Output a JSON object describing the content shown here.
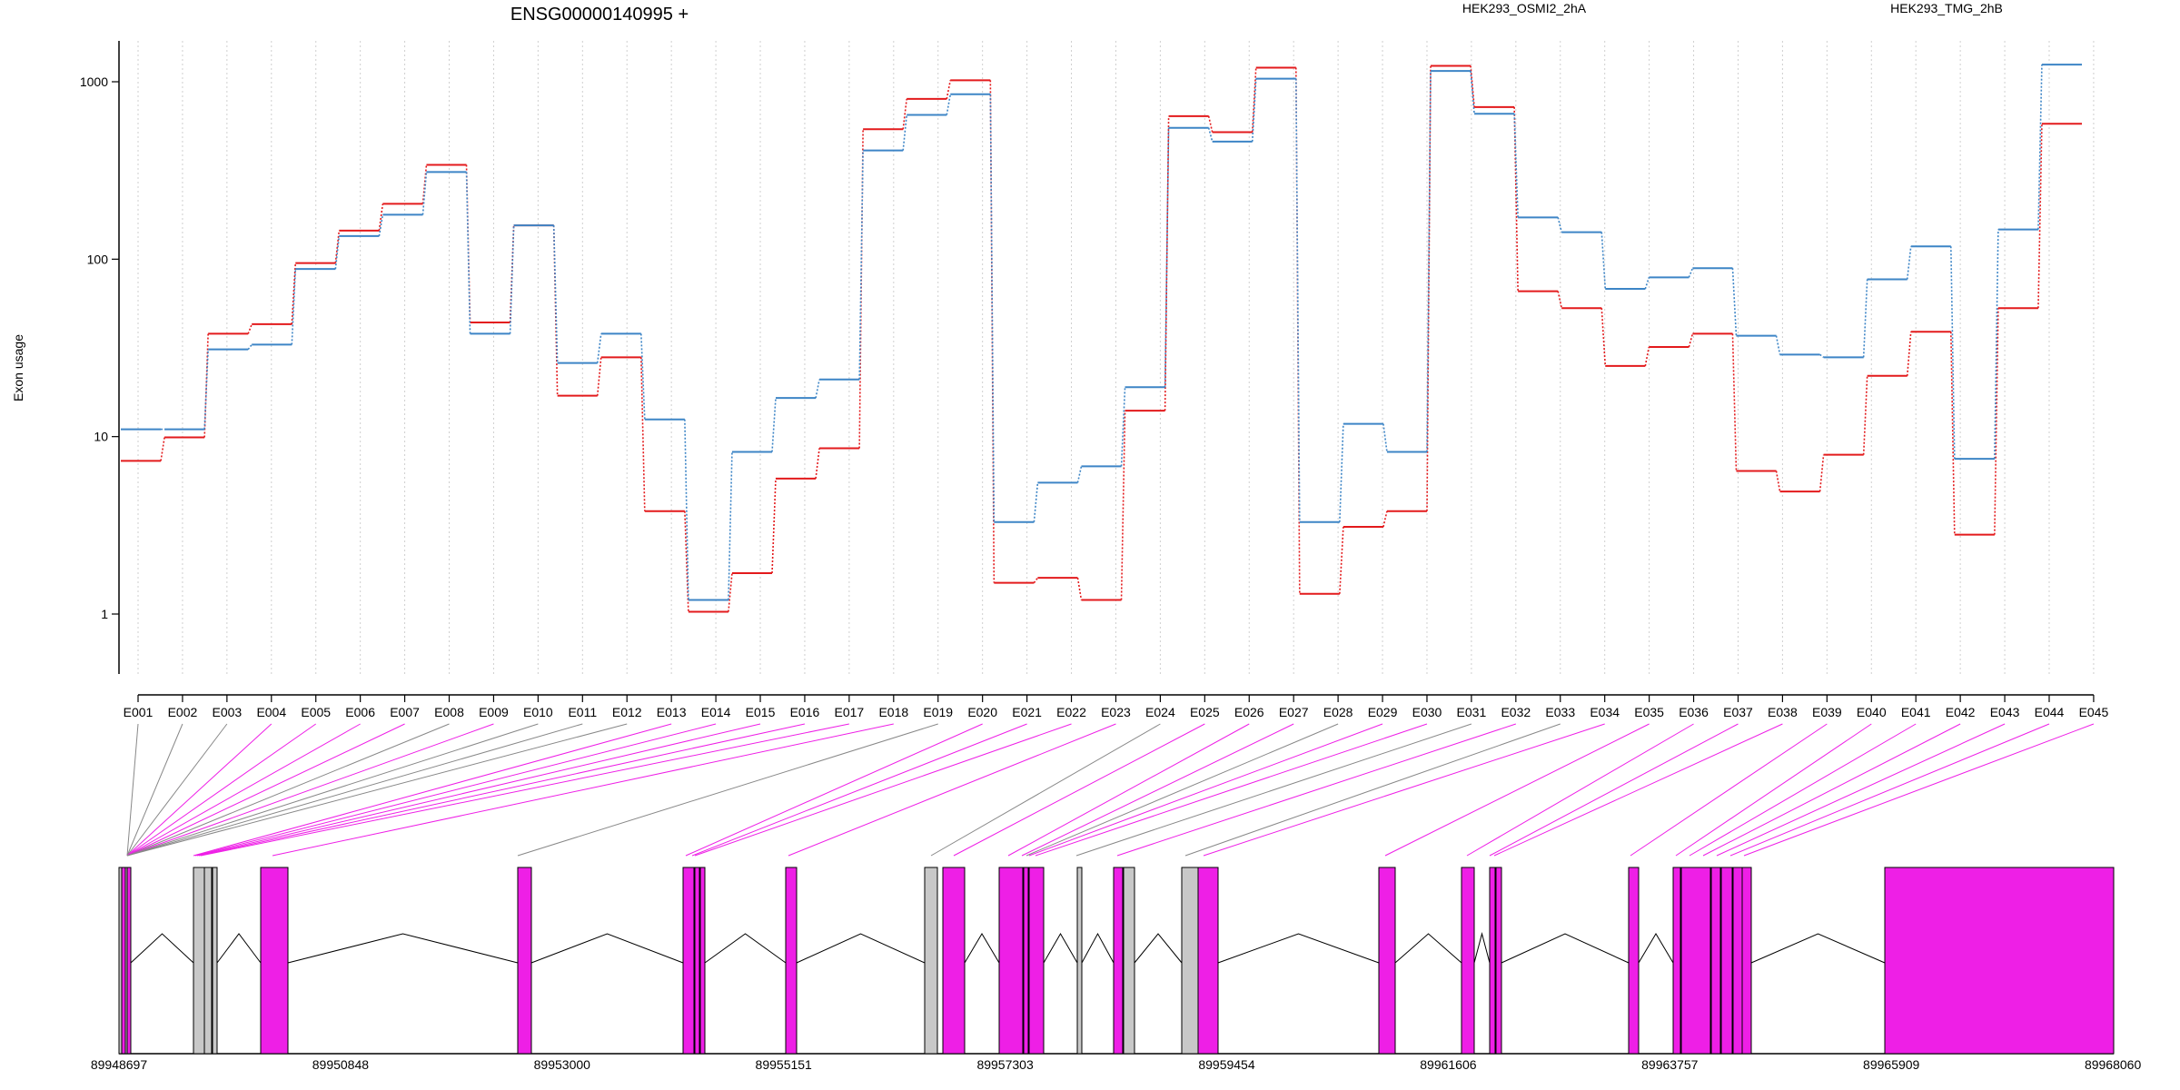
{
  "chart_data": {
    "type": "line",
    "title": "ENSG00000140995 +",
    "ylabel": "Exon usage",
    "yscale": "log",
    "ylim": [
      0.5,
      1600
    ],
    "yticks": [
      1,
      10,
      100,
      1000
    ],
    "ytick_labels": [
      "1",
      "10",
      "100",
      "1000"
    ],
    "grid": "vertical dotted lines at exon labels",
    "categories": [
      "E001",
      "E002",
      "E003",
      "E004",
      "E005",
      "E006",
      "E007",
      "E008",
      "E009",
      "E010",
      "E011",
      "E012",
      "E013",
      "E014",
      "E015",
      "E016",
      "E017",
      "E018",
      "E019",
      "E020",
      "E021",
      "E022",
      "E023",
      "E024",
      "E025",
      "E026",
      "E027",
      "E028",
      "E029",
      "E030",
      "E031",
      "E032",
      "E033",
      "E034",
      "E035",
      "E036",
      "E037",
      "E038",
      "E039",
      "E040",
      "E041",
      "E042",
      "E043",
      "E044",
      "E045"
    ],
    "series": [
      {
        "name": "HEK293_OSMI2_2hA",
        "color": "#e31a1c",
        "values": [
          7.3,
          9.9,
          38,
          43,
          95,
          145,
          205,
          340,
          44,
          155,
          17,
          28,
          3.8,
          1.03,
          1.7,
          5.8,
          8.6,
          540,
          800,
          1020,
          1.5,
          1.6,
          1.2,
          14,
          640,
          520,
          1200,
          1.3,
          3.1,
          3.8,
          1230,
          720,
          66,
          53,
          25,
          32,
          38,
          6.4,
          4.9,
          7.9,
          22,
          39,
          2.8,
          53,
          580
        ]
      },
      {
        "name": "HEK293_TMG_2hB",
        "color": "#3d85c6",
        "values": [
          11,
          11,
          31,
          33,
          88,
          135,
          178,
          310,
          38,
          155,
          26,
          38,
          12.5,
          1.2,
          8.2,
          16.5,
          21,
          410,
          650,
          850,
          3.3,
          5.5,
          6.8,
          19,
          550,
          460,
          1040,
          3.3,
          11.8,
          8.2,
          1150,
          660,
          172,
          142,
          68,
          79,
          89,
          37,
          29,
          28,
          77,
          118,
          7.5,
          147,
          1250
        ]
      }
    ],
    "gene_model": {
      "coordinate_ticks": [
        "89948697",
        "89950848",
        "89953000",
        "89955151",
        "89957303",
        "89959454",
        "89961606",
        "89963757",
        "89965909",
        "89968060"
      ]
    }
  }
}
